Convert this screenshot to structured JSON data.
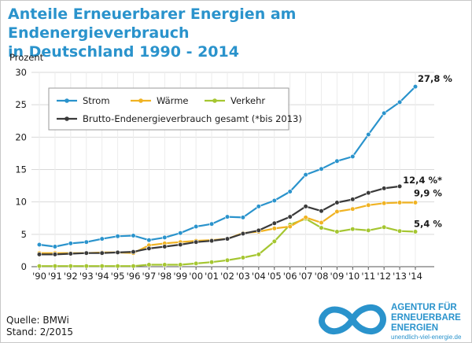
{
  "chart_title": [
    "Anteile Erneuerbarer Energien am Endenergieverbrauch",
    "in Deutschland 1990 - 2014"
  ],
  "chart_data": {
    "type": "line",
    "title": "Anteile Erneuerbarer Energien am Endenergieverbrauch in Deutschland 1990 - 2014",
    "ylabel": "Prozent",
    "xlabel": "",
    "ylim": [
      0,
      30
    ],
    "yticks": [
      "0",
      "5",
      "10",
      "15",
      "20",
      "25",
      "30"
    ],
    "x": [
      "'90",
      "'91",
      "'92",
      "'93",
      "'94",
      "'95",
      "'96",
      "'97",
      "'98",
      "'99",
      "'00",
      "'01",
      "'02",
      "'03",
      "'04",
      "'05",
      "'06",
      "'07",
      "'08",
      "'09",
      "'10",
      "'11",
      "'12",
      "'13",
      "'14"
    ],
    "grid": true,
    "legend_position": "top-left",
    "series": [
      {
        "name": "Strom",
        "color": "#2a93cc",
        "values": [
          3.4,
          3.1,
          3.6,
          3.8,
          4.3,
          4.7,
          4.8,
          4.1,
          4.5,
          5.2,
          6.2,
          6.6,
          7.7,
          7.6,
          9.3,
          10.2,
          11.6,
          14.2,
          15.1,
          16.3,
          17.0,
          20.4,
          23.7,
          25.4,
          27.8
        ],
        "end_label": "27,8 %"
      },
      {
        "name": "Wärme",
        "color": "#f0b323",
        "values": [
          2.1,
          2.1,
          2.1,
          2.1,
          2.2,
          2.2,
          2.1,
          3.3,
          3.6,
          3.8,
          4.0,
          4.1,
          4.3,
          5.2,
          5.4,
          5.9,
          6.2,
          7.6,
          6.8,
          8.5,
          8.9,
          9.5,
          9.8,
          9.9,
          9.9
        ],
        "end_label": "9,9 %"
      },
      {
        "name": "Verkehr",
        "color": "#a5c631",
        "values": [
          0.1,
          0.1,
          0.1,
          0.1,
          0.1,
          0.1,
          0.1,
          0.3,
          0.3,
          0.3,
          0.5,
          0.7,
          1.0,
          1.4,
          1.9,
          3.9,
          6.5,
          7.4,
          6.0,
          5.4,
          5.8,
          5.6,
          6.1,
          5.5,
          5.4
        ],
        "end_label": "5,4 %"
      },
      {
        "name": "Brutto-Endenergieverbrauch gesamt (*bis 2013)",
        "color": "#3a3a3a",
        "values": [
          1.9,
          1.9,
          2.0,
          2.1,
          2.1,
          2.2,
          2.3,
          2.8,
          3.1,
          3.4,
          3.8,
          4.0,
          4.3,
          5.1,
          5.6,
          6.7,
          7.7,
          9.3,
          8.6,
          9.9,
          10.4,
          11.4,
          12.1,
          12.4,
          null
        ],
        "end_label": "12,4 %*"
      }
    ]
  },
  "source": {
    "quelle": "Quelle: BMWi",
    "stand": "Stand: 2/2015"
  },
  "logo": {
    "lines": [
      "AGENTUR FÜR",
      "ERNEUERBARE",
      "ENERGIEN"
    ],
    "url": "unendlich-viel-energie.de"
  }
}
